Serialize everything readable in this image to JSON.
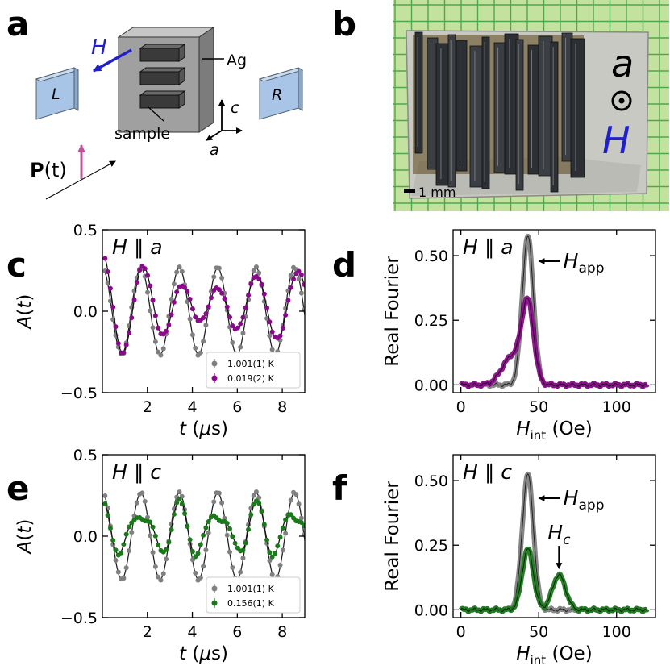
{
  "panel_labels": [
    "a",
    "b",
    "c",
    "d",
    "e",
    "f"
  ],
  "schematic": {
    "field_label": "H",
    "left_detector": "L",
    "right_detector": "R",
    "holder_label": "Ag",
    "sample_label": "sample",
    "axis_c": "c",
    "axis_a": "a",
    "polarization_bold": "P",
    "polarization_arg": "(t)"
  },
  "photo": {
    "axis_letter": "a",
    "field_letter": "H",
    "scale_bar": "1 mm"
  },
  "colors": {
    "grey": "#808080",
    "purple": "#8b0a8b",
    "green": "#1a7a1a",
    "field_blue": "#1f1fcc",
    "detector_fill": "#a8c4e6",
    "holder_fill": "#a0a0a0",
    "pol_arrow": "#c0509a",
    "photo_bg": "#c3e2a0",
    "photo_grid": "#4ea84a"
  },
  "chart_data": [
    {
      "panel": "c",
      "type": "scatter",
      "annotation": {
        "lhs": "H",
        "parallel": "∥",
        "rhs": "a"
      },
      "xlabel": "t (μs)",
      "ylabel": "A(t)",
      "xlim": [
        0,
        9
      ],
      "ylim": [
        -0.5,
        0.5
      ],
      "xticks": [
        "2",
        "4",
        "6",
        "8"
      ],
      "xtick_values": [
        2,
        4,
        6,
        8
      ],
      "yticks": [
        "0.5",
        "0.0",
        "−0.5"
      ],
      "ytick_values": [
        0.5,
        0.0,
        -0.5
      ],
      "legend_position": "lower-right",
      "series": [
        {
          "name": "1.001(1) K",
          "color": "#808080",
          "model": {
            "offset": 0.0,
            "amp": 0.265,
            "freq": 0.585,
            "phase": 0.0,
            "decay": 0.0
          }
        },
        {
          "name": "0.019(2) K",
          "color": "#8b0a8b",
          "model": {
            "offset": 0.035,
            "amp": 0.24,
            "freq": 0.575,
            "phase": 0.0,
            "decay": 0.07,
            "amp2": 0.08,
            "freq2": 0.46
          }
        }
      ]
    },
    {
      "panel": "d",
      "type": "line",
      "annotation": {
        "lhs": "H",
        "parallel": "∥",
        "rhs": "a"
      },
      "peak_label": {
        "main": "H",
        "sub": "app"
      },
      "xlabel": "Hint (Oe)",
      "ylabel": "Real Fourier",
      "xlim": [
        -5,
        125
      ],
      "ylim": [
        -0.03,
        0.6
      ],
      "xticks": [
        "0",
        "50",
        "100"
      ],
      "xtick_values": [
        0,
        50,
        100
      ],
      "yticks": [
        "0.00",
        "0.25",
        "0.50"
      ],
      "ytick_values": [
        0.0,
        0.25,
        0.5
      ],
      "series": [
        {
          "color": "#808080",
          "peaks": [
            {
              "center": 43,
              "height": 0.575,
              "width": 3.6
            }
          ]
        },
        {
          "color": "#8b0a8b",
          "peaks": [
            {
              "center": 43,
              "height": 0.3,
              "width": 3.8
            },
            {
              "center": 33,
              "height": 0.11,
              "width": 6.5
            }
          ]
        }
      ]
    },
    {
      "panel": "e",
      "type": "scatter",
      "annotation": {
        "lhs": "H",
        "parallel": "∥",
        "rhs": "c"
      },
      "xlabel": "t (μs)",
      "ylabel": "A(t)",
      "xlim": [
        0,
        9
      ],
      "ylim": [
        -0.5,
        0.5
      ],
      "xticks": [
        "2",
        "4",
        "6",
        "8"
      ],
      "xtick_values": [
        2,
        4,
        6,
        8
      ],
      "yticks": [
        "0.5",
        "0.0",
        "−0.5"
      ],
      "ytick_values": [
        0.5,
        0.0,
        -0.5
      ],
      "legend_position": "lower-right",
      "series": [
        {
          "name": "1.001(1) K",
          "color": "#808080",
          "model": {
            "offset": 0.0,
            "amp": 0.265,
            "freq": 0.585,
            "phase": 0.0,
            "decay": 0.0
          }
        },
        {
          "name": "0.156(1) K",
          "color": "#1a7a1a",
          "model": {
            "offset": 0.04,
            "amp": 0.125,
            "freq": 0.585,
            "phase": 0.0,
            "decay": 0.0,
            "amp2": 0.06,
            "freq2": 0.87
          }
        }
      ]
    },
    {
      "panel": "f",
      "type": "line",
      "annotation": {
        "lhs": "H",
        "parallel": "∥",
        "rhs": "c"
      },
      "peak_label": {
        "main": "H",
        "sub": "app"
      },
      "second_label": {
        "main": "H",
        "sub": "c"
      },
      "xlabel": "Hint (Oe)",
      "ylabel": "Real Fourier",
      "xlim": [
        -5,
        125
      ],
      "ylim": [
        -0.03,
        0.6
      ],
      "xticks": [
        "0",
        "50",
        "100"
      ],
      "xtick_values": [
        0,
        50,
        100
      ],
      "yticks": [
        "0.00",
        "0.25",
        "0.50"
      ],
      "ytick_values": [
        0.0,
        0.25,
        0.5
      ],
      "series": [
        {
          "color": "#808080",
          "peaks": [
            {
              "center": 43,
              "height": 0.525,
              "width": 3.6
            }
          ]
        },
        {
          "color": "#1a7a1a",
          "peaks": [
            {
              "center": 43,
              "height": 0.235,
              "width": 3.6
            },
            {
              "center": 63,
              "height": 0.135,
              "width": 4.2
            }
          ]
        }
      ]
    }
  ]
}
